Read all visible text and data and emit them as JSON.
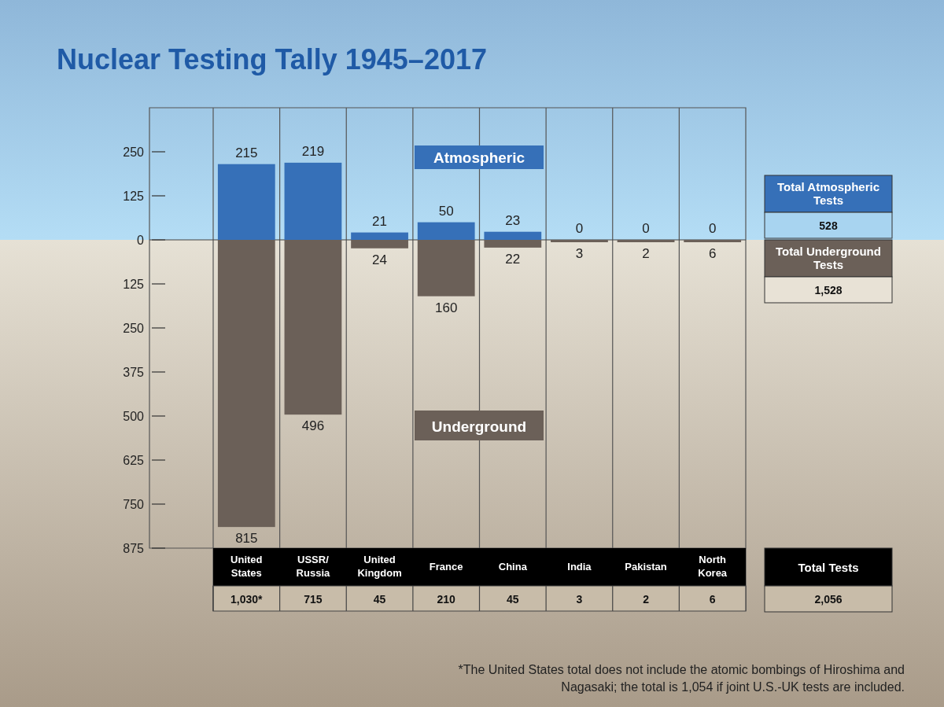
{
  "chart_data": {
    "type": "bar",
    "title": "Nuclear Testing Tally 1945–2017",
    "categories": [
      "United States",
      "USSR/Russia",
      "United Kingdom",
      "France",
      "China",
      "India",
      "Pakistan",
      "North Korea"
    ],
    "series": [
      {
        "name": "Atmospheric",
        "color": "#3670b8",
        "values": [
          215,
          219,
          21,
          50,
          23,
          0,
          0,
          0
        ],
        "value_labels": [
          "215",
          "219",
          "21",
          "50",
          "23",
          "0",
          "0",
          "0"
        ]
      },
      {
        "name": "Underground",
        "color": "#6b6058",
        "axis": "y2",
        "values": [
          815,
          496,
          24,
          160,
          22,
          3,
          2,
          6
        ],
        "value_labels": [
          "815",
          "496",
          "24",
          "160",
          "22",
          "3",
          "2",
          "6"
        ]
      }
    ],
    "ylim": [
      -875,
      375
    ],
    "yticks": [
      250,
      125,
      0
    ],
    "y2lim": [
      875,
      -375
    ],
    "y2ticks": [
      125,
      250,
      375,
      500,
      625,
      750,
      875
    ],
    "stacked": true,
    "annotations": [
      "1,030*",
      "715",
      "45",
      "210",
      "45",
      "3",
      "2",
      "6",
      "Total Atmospheric Tests",
      "528",
      "Total Underground Tests",
      "1,528",
      "Total Tests",
      "2,056",
      "*The United States total does not include the atomic bombings of Hiroshima and Nagasaki; the total is 1,054 if joint U.S.-UK tests are included."
    ]
  }
}
